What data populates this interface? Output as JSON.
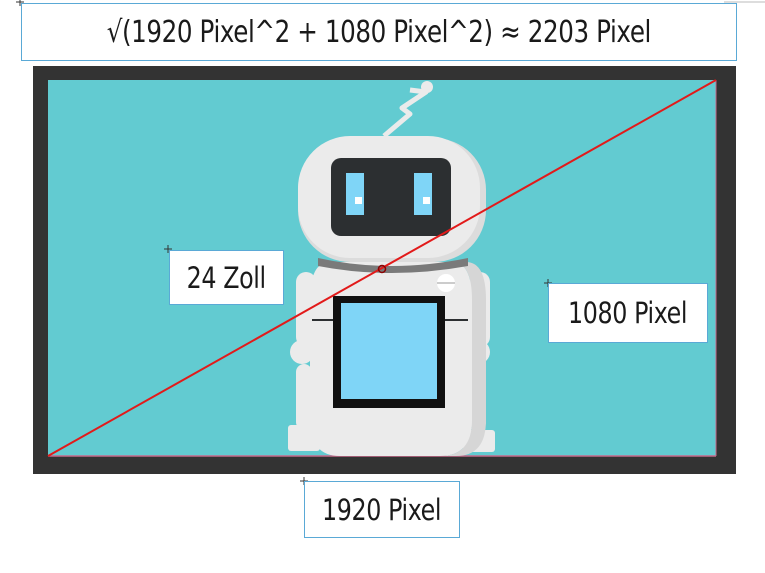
{
  "formula": "√(1920 Pixel^2 + 1080 Pixel^2) ≈ 2203 Pixel",
  "diagonal_label": "24 Zoll",
  "height_label": "1080 Pixel",
  "width_label": "1920 Pixel",
  "colors": {
    "monitor_frame": "#333333",
    "screen": "#62cbd1",
    "diagonal_line": "#e21a1a",
    "robot_body": "#ebebeb",
    "robot_visor": "#2c2f31",
    "robot_eyes": "#7fd5f7",
    "chest_screen": "#7fd5f7",
    "textbox_border": "#5aa9d6"
  }
}
